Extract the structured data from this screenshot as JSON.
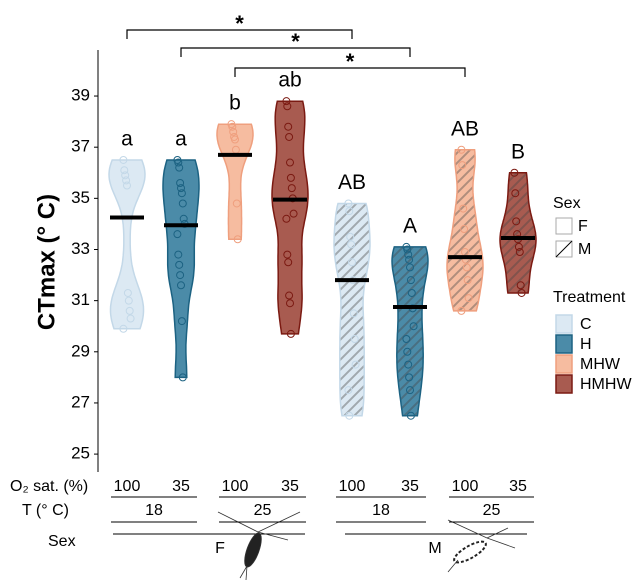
{
  "chart_data": {
    "type": "violin",
    "y_label": "CTmax (° C)",
    "ylim": [
      24.3,
      40.8
    ],
    "yticks": [
      25,
      27,
      29,
      31,
      33,
      35,
      37,
      39
    ],
    "sexes": [
      "F",
      "M"
    ],
    "sex_row_label": "Sex",
    "o2_label": "O₂ sat. (%)",
    "o2": [
      100,
      35,
      100,
      35,
      100,
      35,
      100,
      35
    ],
    "temp_label": "T (° C)",
    "temp": [
      18,
      25,
      18,
      25
    ],
    "brackets": [
      "*",
      "*",
      "*"
    ],
    "legend": {
      "sex_title": "Sex",
      "treatment_title": "Treatment"
    },
    "series": [
      {
        "name": "C",
        "color": "#dce9f3",
        "edge": "#c3d8e8",
        "medians": [
          34.25,
          31.8
        ],
        "letters": [
          "a",
          "AB"
        ],
        "points": [
          [
            36.5,
            36.1,
            35.9,
            35.7,
            35.5,
            31.3,
            31.0,
            30.6,
            30.3,
            29.9
          ],
          [
            34.8,
            34.5,
            33.5,
            33.2,
            32.5,
            31.8,
            30.5,
            29.5,
            28.5,
            27.5,
            26.5
          ]
        ]
      },
      {
        "name": "H",
        "color": "#4b8ba8",
        "edge": "#1c6282",
        "medians": [
          33.95,
          30.75
        ],
        "letters": [
          "a",
          "A"
        ],
        "points": [
          [
            36.5,
            36.4,
            36.2,
            35.6,
            35.4,
            35.2,
            34.8,
            34.2,
            34.0,
            33.6,
            32.8,
            32.4,
            32.0,
            31.6,
            30.2,
            28.0
          ],
          [
            33.1,
            33.0,
            32.8,
            32.6,
            32.3,
            31.8,
            31.3,
            30.7,
            30.0,
            29.5,
            29.0,
            28.5,
            28.0,
            27.5,
            26.5
          ]
        ]
      },
      {
        "name": "MHW",
        "color": "#f6bca0",
        "edge": "#ef9f7e",
        "medians": [
          36.7,
          32.7
        ],
        "letters": [
          "b",
          "AB"
        ],
        "points": [
          [
            37.9,
            37.8,
            37.6,
            37.4,
            37.3,
            36.9,
            34.8,
            33.4
          ],
          [
            36.9,
            36.3,
            34.6,
            33.8,
            32.9,
            32.6,
            32.3,
            31.8,
            31.1,
            30.6
          ]
        ]
      },
      {
        "name": "HMHW",
        "color": "#a85b50",
        "edge": "#7b1a12",
        "medians": [
          34.95,
          33.45
        ],
        "letters": [
          "ab",
          "B"
        ],
        "points": [
          [
            38.8,
            38.6,
            37.8,
            37.4,
            36.4,
            35.8,
            35.4,
            35.0,
            34.4,
            34.2,
            32.8,
            32.5,
            31.2,
            30.9,
            29.7
          ],
          [
            36.0,
            35.2,
            34.1,
            33.6,
            33.4,
            33.1,
            32.9,
            31.6,
            31.3
          ]
        ]
      }
    ]
  }
}
